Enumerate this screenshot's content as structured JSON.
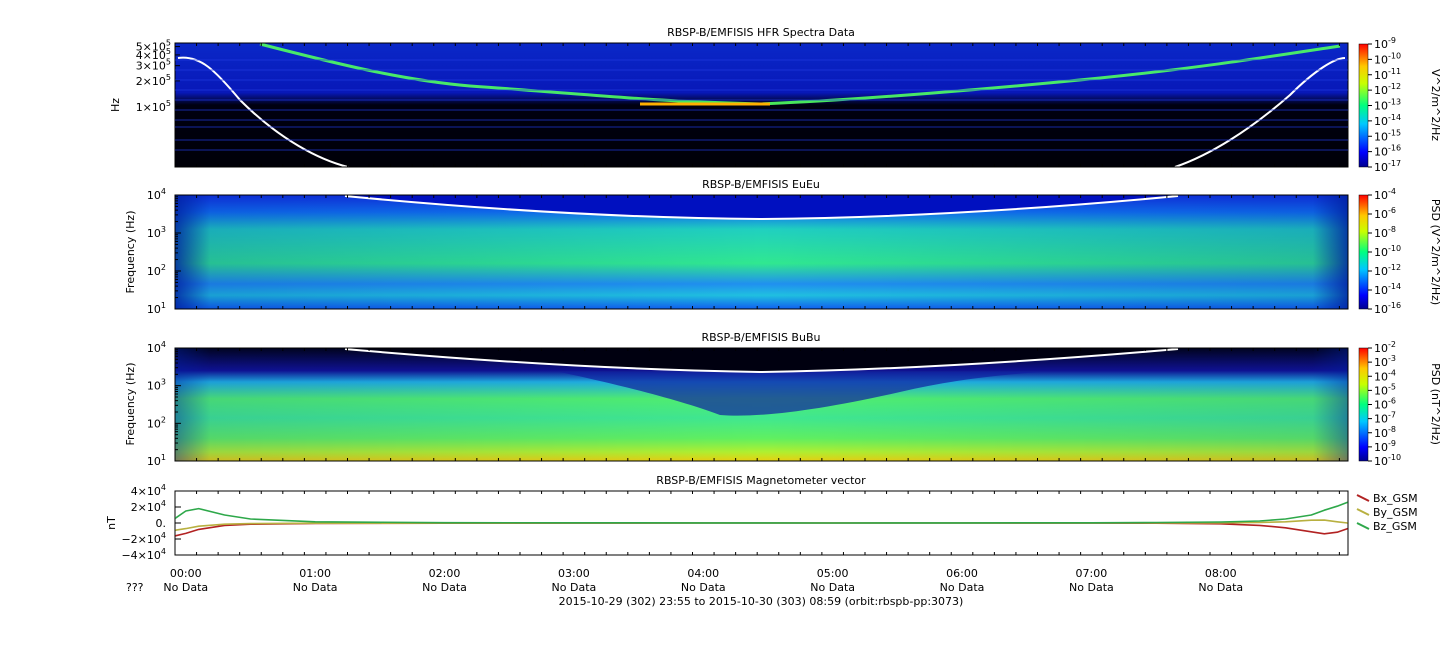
{
  "x_axis": {
    "ticks": [
      "00:00",
      "01:00",
      "02:00",
      "03:00",
      "04:00",
      "05:00",
      "06:00",
      "07:00",
      "08:00"
    ],
    "ephem_row_label": "???",
    "ephem_values": [
      "No Data",
      "No Data",
      "No Data",
      "No Data",
      "No Data",
      "No Data",
      "No Data",
      "No Data",
      "No Data"
    ],
    "footer": "2015-10-29 (302) 23:55 to 2015-10-30 (303) 08:59 (orbit:rbspb-pp:3073)"
  },
  "chart_data": [
    {
      "type": "heatmap",
      "title": "RBSP-B/EMFISIS  HFR Spectra Data",
      "ylabel": "Hz",
      "yscale": "log",
      "y_ticks": [
        {
          "mantissa": "5",
          "exp": "5",
          "value": 500000
        },
        {
          "mantissa": "4",
          "exp": "5",
          "value": 400000
        },
        {
          "mantissa": "3",
          "exp": "5",
          "value": 300000
        },
        {
          "mantissa": "2",
          "exp": "5",
          "value": 200000
        },
        {
          "mantissa": "1",
          "exp": "5",
          "value": 100000
        }
      ],
      "colorbar": {
        "label": "V^2/m^2/Hz",
        "ticks": [
          "-9",
          "-10",
          "-11",
          "-12",
          "-13",
          "-14",
          "-15",
          "-16",
          "-17"
        ]
      },
      "overlay_curve": "white line (left start ~3.5e5 Hz, mirrored on right)"
    },
    {
      "type": "heatmap",
      "title": "RBSP-B/EMFISIS  EuEu",
      "ylabel": "Frequency (Hz)",
      "yscale": "log",
      "ylim": [
        10,
        10000
      ],
      "y_ticks": [
        "4",
        "3",
        "2",
        "1"
      ],
      "colorbar": {
        "label": "PSD (V^2/m^2/Hz)",
        "ticks": [
          "-4",
          "-6",
          "-8",
          "-10",
          "-12",
          "-14",
          "-16"
        ]
      }
    },
    {
      "type": "heatmap",
      "title": "RBSP-B/EMFISIS  BuBu",
      "ylabel": "Frequency (Hz)",
      "yscale": "log",
      "ylim": [
        10,
        10000
      ],
      "y_ticks": [
        "4",
        "3",
        "2",
        "1"
      ],
      "colorbar": {
        "label": "PSD (nT^2/Hz)",
        "ticks": [
          "-2",
          "-3",
          "-4",
          "-5",
          "-6",
          "-7",
          "-8",
          "-9",
          "-10"
        ]
      }
    },
    {
      "type": "line",
      "title": "RBSP-B/EMFISIS  Magnetometer vector",
      "ylabel": "nT",
      "ylim": [
        -40000,
        40000
      ],
      "y_ticks": [
        {
          "mantissa": "4",
          "exp": "4",
          "sign": ""
        },
        {
          "mantissa": "2",
          "exp": "4",
          "sign": ""
        },
        {
          "mantissa": "0.",
          "exp": "",
          "sign": ""
        },
        {
          "mantissa": "2",
          "exp": "4",
          "sign": "−"
        },
        {
          "mantissa": "4",
          "exp": "4",
          "sign": "−"
        }
      ],
      "x_hours": [
        -0.08,
        0,
        0.1,
        0.3,
        0.5,
        1.0,
        2.0,
        3.0,
        4.0,
        5.0,
        6.0,
        7.0,
        7.5,
        8.0,
        8.3,
        8.5,
        8.7,
        8.8,
        8.9,
        8.98
      ],
      "series": [
        {
          "name": "Bx_GSM",
          "color": "#b22222",
          "values": [
            -16000,
            -13000,
            -8000,
            -3000,
            -1500,
            -500,
            -200,
            -100,
            -50,
            -50,
            -50,
            -100,
            -200,
            -1000,
            -3000,
            -6000,
            -11000,
            -13500,
            -11500,
            -7000
          ]
        },
        {
          "name": "By_GSM",
          "color": "#b8b040",
          "values": [
            -9000,
            -7000,
            -4000,
            -1500,
            -800,
            -300,
            -100,
            0,
            0,
            0,
            0,
            0,
            100,
            300,
            600,
            1500,
            3500,
            3600,
            1500,
            0
          ]
        },
        {
          "name": "Bz_GSM",
          "color": "#2ea84a",
          "values": [
            6000,
            15000,
            18000,
            10000,
            5000,
            1500,
            400,
            200,
            100,
            0,
            100,
            300,
            600,
            1200,
            2500,
            5000,
            10000,
            16000,
            21000,
            26000
          ]
        }
      ]
    }
  ]
}
